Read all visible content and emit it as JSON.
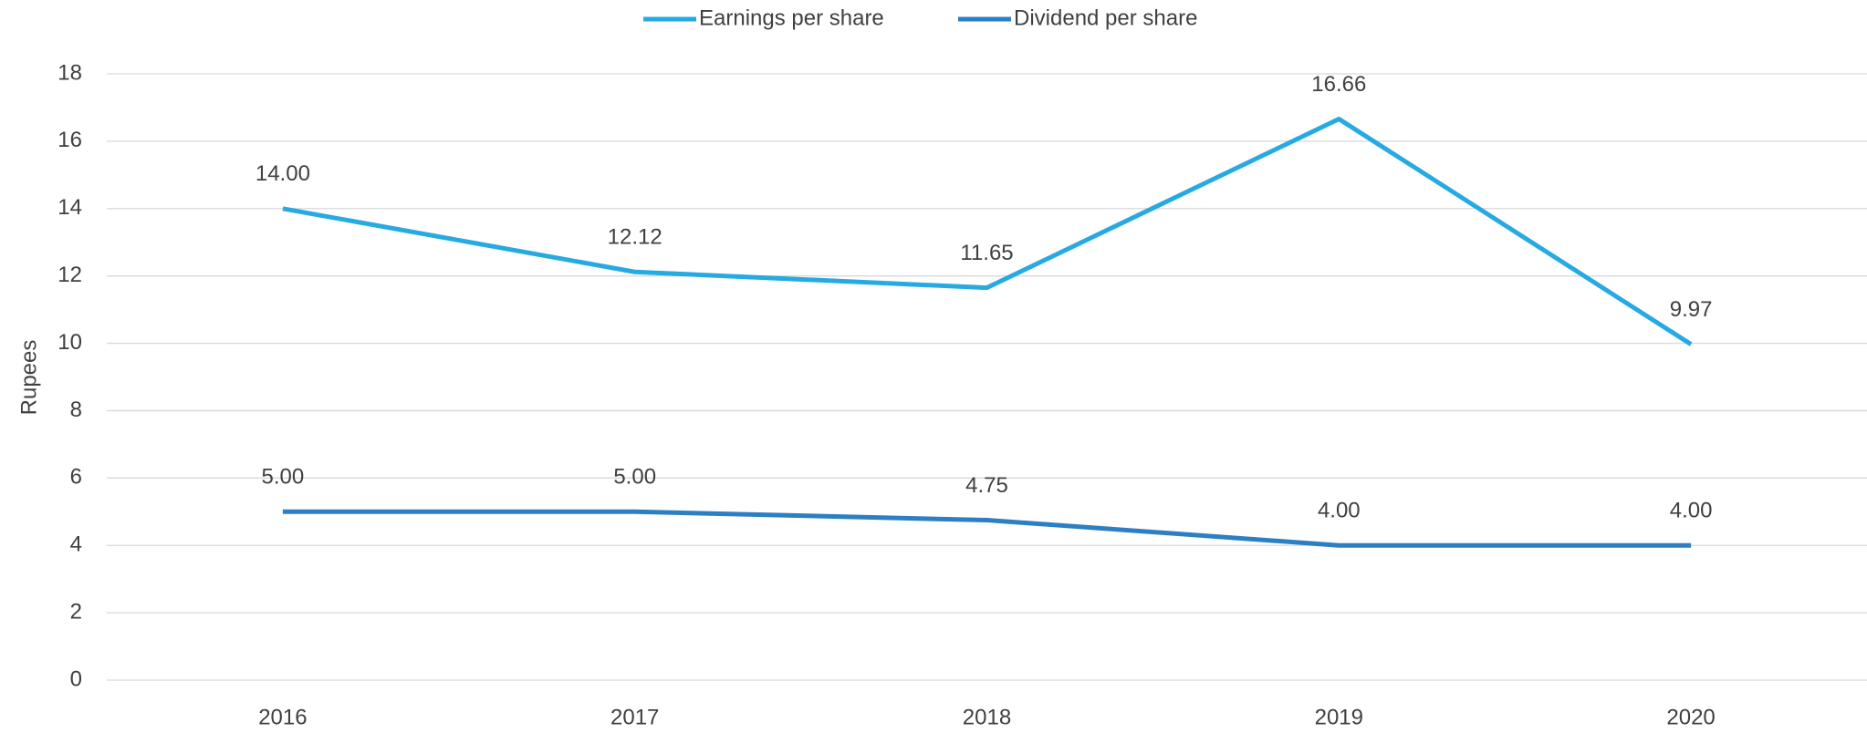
{
  "chart_data": {
    "type": "line",
    "y_label": "Rupees",
    "categories": [
      "2016",
      "2017",
      "2018",
      "2019",
      "2020"
    ],
    "series": [
      {
        "name": "Earnings per share",
        "color": "#27aae1",
        "values": [
          14,
          12.12,
          11.65,
          16.66,
          9.97
        ],
        "value_labels": [
          "14.00",
          "12.12",
          "11.65",
          "16.66",
          "9.97"
        ]
      },
      {
        "name": "Dividend per share",
        "color": "#2b7fc2",
        "values": [
          5,
          5,
          4.75,
          4,
          4
        ],
        "value_labels": [
          "5.00",
          "5.00",
          "4.75",
          "4.00",
          "4.00"
        ]
      }
    ],
    "ylim": [
      0,
      18
    ],
    "yticks": [
      0,
      2,
      4,
      6,
      8,
      10,
      12,
      14,
      16,
      18
    ],
    "grid": true,
    "legend": "top"
  }
}
